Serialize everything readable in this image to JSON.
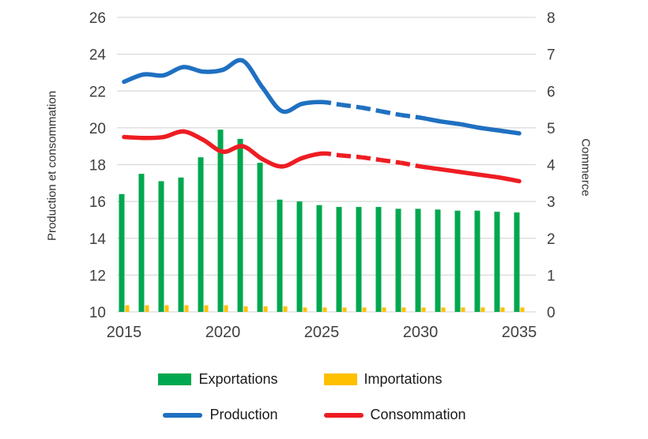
{
  "chart_data": {
    "type": "combo-bar-line",
    "title": "",
    "x": [
      2015,
      2016,
      2017,
      2018,
      2019,
      2020,
      2021,
      2022,
      2023,
      2024,
      2025,
      2026,
      2027,
      2028,
      2029,
      2030,
      2031,
      2032,
      2033,
      2034,
      2035
    ],
    "x_tick_labels": [
      "2015",
      "2020",
      "2025",
      "2030",
      "2035"
    ],
    "left_axis": {
      "label": "Production et consommation",
      "min": 10,
      "max": 26,
      "tick_step": 2
    },
    "right_axis": {
      "label": "Commerce",
      "min": 0,
      "max": 8,
      "tick_step": 1
    },
    "grid_on": true,
    "grid_color": "#d9d9d9",
    "text_color": "#404040",
    "legend_position": "bottom",
    "series": [
      {
        "name": "Exportations",
        "type": "bar",
        "axis": "right",
        "color": "#00a84f",
        "values": [
          3.2,
          3.75,
          3.55,
          3.65,
          4.2,
          4.95,
          4.7,
          4.05,
          3.05,
          3.0,
          2.9,
          2.85,
          2.85,
          2.85,
          2.8,
          2.8,
          2.78,
          2.75,
          2.75,
          2.72,
          2.7
        ]
      },
      {
        "name": "Importations",
        "type": "bar",
        "axis": "right",
        "color": "#ffc000",
        "values": [
          0.18,
          0.18,
          0.18,
          0.18,
          0.18,
          0.18,
          0.15,
          0.15,
          0.15,
          0.12,
          0.12,
          0.12,
          0.12,
          0.12,
          0.12,
          0.12,
          0.12,
          0.12,
          0.12,
          0.12,
          0.12
        ]
      },
      {
        "name": "Production",
        "type": "line",
        "axis": "left",
        "color": "#1f70c1",
        "dashed_x_range": [
          2025,
          2030
        ],
        "values": [
          22.5,
          22.9,
          22.85,
          23.3,
          23.05,
          23.15,
          23.65,
          22.2,
          20.9,
          21.3,
          21.4,
          21.25,
          21.1,
          20.9,
          20.7,
          20.55,
          20.35,
          20.2,
          20.0,
          19.85,
          19.7
        ]
      },
      {
        "name": "Consommation",
        "type": "line",
        "axis": "left",
        "color": "#ee1d23",
        "dashed_x_range": [
          2025,
          2030
        ],
        "values": [
          19.5,
          19.45,
          19.5,
          19.8,
          19.35,
          18.7,
          19.0,
          18.3,
          17.9,
          18.35,
          18.6,
          18.5,
          18.4,
          18.25,
          18.1,
          17.9,
          17.75,
          17.6,
          17.45,
          17.3,
          17.1
        ]
      }
    ]
  }
}
